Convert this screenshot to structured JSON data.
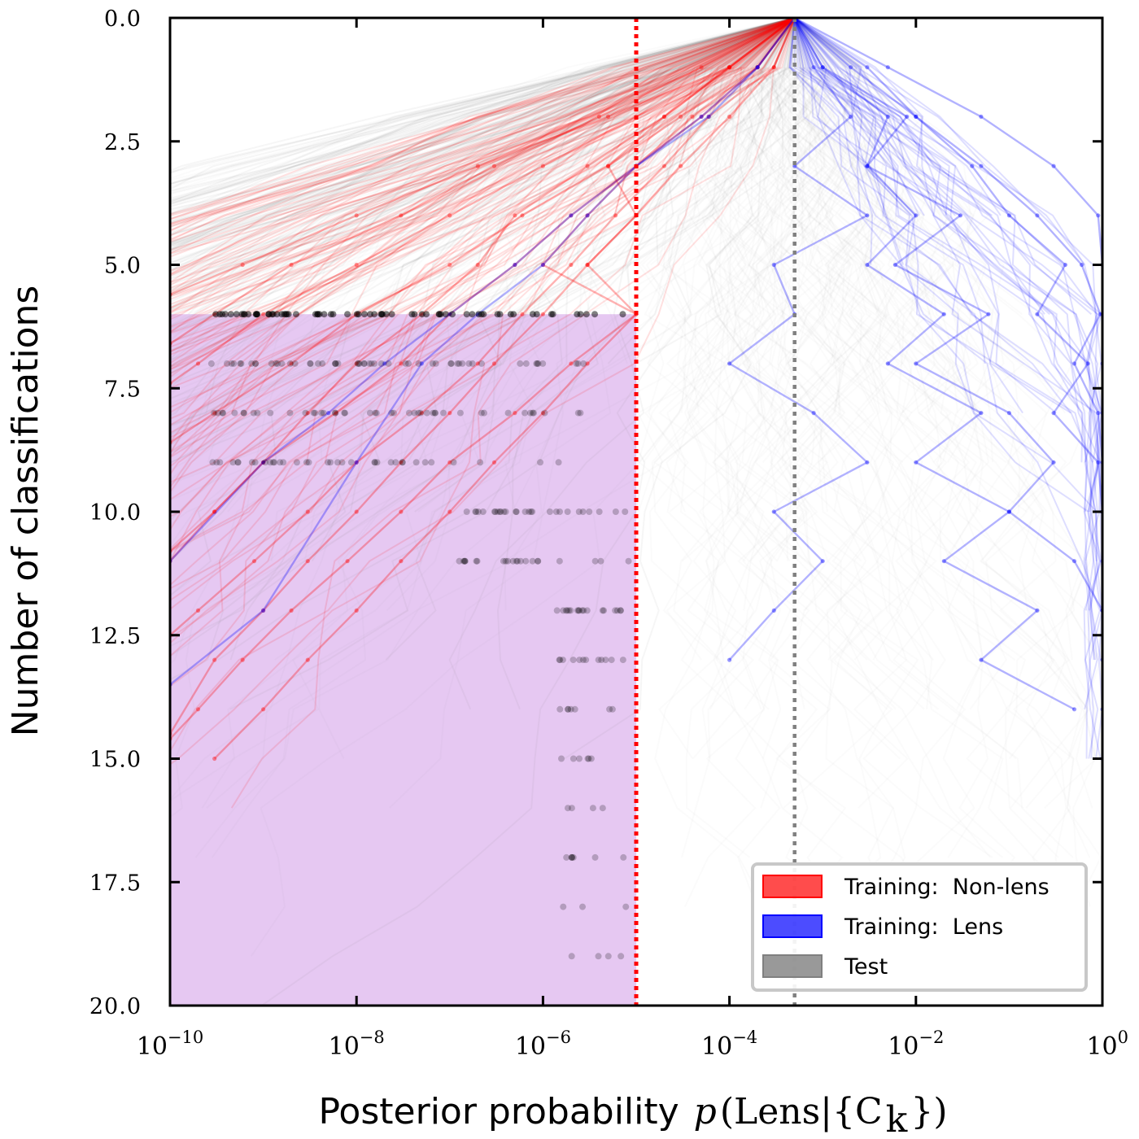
{
  "chart_data": {
    "type": "line",
    "xlabel": "Posterior probability",
    "xlabel_math": {
      "italic": "p",
      "rest": "(Lens|{C",
      "sub": "k",
      "close": "})"
    },
    "ylabel": "Number of classifications",
    "x_scale": "log",
    "xlim": [
      1e-10,
      1
    ],
    "ylim": [
      20,
      0
    ],
    "y_inverted": true,
    "x_ticks": [
      {
        "value": 1e-10,
        "base": "10",
        "exp": "−10"
      },
      {
        "value": 1e-08,
        "base": "10",
        "exp": "−8"
      },
      {
        "value": 1e-06,
        "base": "10",
        "exp": "−6"
      },
      {
        "value": 0.0001,
        "base": "10",
        "exp": "−4"
      },
      {
        "value": 0.01,
        "base": "10",
        "exp": "−2"
      },
      {
        "value": 1,
        "base": "10",
        "exp": "0"
      }
    ],
    "y_ticks": [
      {
        "value": 0,
        "label": "0.0"
      },
      {
        "value": 2.5,
        "label": "2.5"
      },
      {
        "value": 5,
        "label": "5.0"
      },
      {
        "value": 7.5,
        "label": "7.5"
      },
      {
        "value": 10,
        "label": "10.0"
      },
      {
        "value": 12.5,
        "label": "12.5"
      },
      {
        "value": 15,
        "label": "15.0"
      },
      {
        "value": 17.5,
        "label": "17.5"
      },
      {
        "value": 20,
        "label": "20.0"
      }
    ],
    "prior": 0.0005,
    "rejection_threshold": 1e-05,
    "detection_threshold": 1,
    "shaded_region": {
      "x": [
        1e-10,
        1e-05
      ],
      "y": [
        6,
        20
      ],
      "color": "#e6c8f2"
    },
    "legend": {
      "position": "bottom-right",
      "entries": [
        {
          "label": "Training:  Non-lens",
          "color": "#ff0000"
        },
        {
          "label": "Training:  Lens",
          "color": "#0000ff"
        },
        {
          "label": "Test",
          "color": "#808080"
        }
      ]
    },
    "series": [
      {
        "name": "Training:  Non-lens",
        "color": "#ff0000",
        "trajectories": [
          [
            [
              0.0005,
              0
            ],
            [
              0.0001,
              1
            ],
            [
              5e-06,
              2
            ],
            [
              2e-07,
              3
            ],
            [
              1e-08,
              4
            ],
            [
              6e-10,
              5
            ],
            [
              1e-10,
              5.6
            ]
          ],
          [
            [
              0.0005,
              0
            ],
            [
              5e-05,
              1
            ],
            [
              4e-06,
              2
            ],
            [
              3e-07,
              3
            ],
            [
              3e-08,
              4
            ],
            [
              2e-09,
              5
            ],
            [
              3e-10,
              6
            ],
            [
              1e-10,
              6.6
            ]
          ],
          [
            [
              0.0005,
              0
            ],
            [
              0.0001,
              1
            ],
            [
              1e-05,
              2
            ],
            [
              1e-06,
              3
            ],
            [
              1e-07,
              4
            ],
            [
              1e-08,
              5
            ],
            [
              1e-09,
              6
            ],
            [
              2e-10,
              7
            ],
            [
              1e-10,
              7.4
            ]
          ],
          [
            [
              0.0005,
              0
            ],
            [
              0.0002,
              1
            ],
            [
              3e-05,
              2
            ],
            [
              5e-06,
              3
            ],
            [
              6e-07,
              4
            ],
            [
              1e-07,
              5
            ],
            [
              1e-08,
              6
            ],
            [
              2e-09,
              7
            ],
            [
              3e-10,
              8
            ],
            [
              1e-10,
              8.6
            ]
          ],
          [
            [
              0.0005,
              0
            ],
            [
              0.0002,
              1
            ],
            [
              4e-05,
              2
            ],
            [
              1e-05,
              3
            ],
            [
              2e-06,
              4
            ],
            [
              5e-07,
              5
            ],
            [
              1e-07,
              6
            ],
            [
              3e-08,
              7
            ],
            [
              6e-09,
              8
            ],
            [
              1e-09,
              9
            ],
            [
              3e-10,
              10
            ],
            [
              1e-10,
              10.8
            ]
          ],
          [
            [
              0.0005,
              0
            ],
            [
              0.0003,
              1
            ],
            [
              6e-05,
              2
            ],
            [
              2e-05,
              3
            ],
            [
              6e-06,
              4
            ],
            [
              2e-06,
              5
            ],
            [
              6e-07,
              6
            ],
            [
              2e-07,
              7
            ],
            [
              5e-08,
              8
            ],
            [
              1e-08,
              9
            ],
            [
              3e-09,
              10
            ],
            [
              8e-10,
              11
            ],
            [
              2e-10,
              12
            ],
            [
              1e-10,
              12.5
            ]
          ],
          [
            [
              0.0005,
              0
            ],
            [
              0.0003,
              1
            ],
            [
              0.0001,
              2
            ],
            [
              3e-05,
              3
            ],
            [
              1e-05,
              4
            ],
            [
              3e-06,
              5
            ],
            [
              1e-06,
              6
            ],
            [
              3e-07,
              7
            ],
            [
              1e-07,
              8
            ],
            [
              3e-08,
              9
            ],
            [
              1e-08,
              10
            ],
            [
              3e-09,
              11
            ],
            [
              1e-09,
              12
            ],
            [
              3e-10,
              13
            ],
            [
              1e-10,
              14.5
            ]
          ],
          [
            [
              0.0005,
              0
            ],
            [
              0.0001,
              1
            ],
            [
              2e-05,
              2
            ],
            [
              3e-06,
              3
            ],
            [
              5e-07,
              4
            ],
            [
              2e-07,
              5
            ],
            [
              5e-08,
              6
            ],
            [
              1e-08,
              7
            ],
            [
              3e-09,
              8
            ],
            [
              1e-09,
              9
            ],
            [
              3e-10,
              10
            ],
            [
              1e-10,
              11
            ]
          ],
          [
            [
              0.0005,
              0
            ],
            [
              0.0002,
              1
            ],
            [
              5e-05,
              2
            ],
            [
              1e-05,
              3
            ],
            [
              3e-06,
              4
            ],
            [
              1e-06,
              5
            ],
            [
              1e-05,
              6
            ],
            [
              3e-06,
              7
            ],
            [
              1e-06,
              8
            ],
            [
              3e-07,
              9
            ],
            [
              1e-07,
              10
            ],
            [
              3e-08,
              11
            ],
            [
              1e-08,
              12
            ],
            [
              3e-09,
              13
            ],
            [
              1e-09,
              14
            ],
            [
              3e-10,
              15
            ]
          ],
          [
            [
              0.0005,
              0
            ],
            [
              0.0001,
              1
            ],
            [
              2e-05,
              2
            ],
            [
              5e-06,
              3
            ],
            [
              1e-05,
              4
            ],
            [
              3e-06,
              5
            ],
            [
              1e-05,
              6
            ],
            [
              2e-06,
              7
            ],
            [
              5e-07,
              8
            ],
            [
              1e-07,
              9
            ],
            [
              3e-08,
              10
            ],
            [
              8e-09,
              11
            ],
            [
              2e-09,
              12
            ],
            [
              6e-10,
              13
            ],
            [
              2e-10,
              14
            ],
            [
              1e-10,
              14.6
            ]
          ]
        ]
      },
      {
        "name": "Training:  Lens",
        "color": "#0000ff",
        "trajectories": [
          [
            [
              0.0005,
              0
            ],
            [
              0.005,
              1
            ],
            [
              0.05,
              2
            ],
            [
              0.3,
              3
            ],
            [
              0.9,
              4
            ],
            [
              1,
              5
            ],
            [
              1,
              6
            ],
            [
              1,
              7
            ],
            [
              1,
              8
            ]
          ],
          [
            [
              0.0005,
              0
            ],
            [
              0.002,
              1
            ],
            [
              0.01,
              2
            ],
            [
              0.05,
              3
            ],
            [
              0.2,
              4
            ],
            [
              0.6,
              5
            ],
            [
              0.95,
              6
            ],
            [
              0.5,
              7
            ],
            [
              0.9,
              8
            ],
            [
              1,
              9
            ],
            [
              1,
              10
            ]
          ],
          [
            [
              0.0005,
              0
            ],
            [
              0.001,
              1
            ],
            [
              0.005,
              2
            ],
            [
              0.003,
              3
            ],
            [
              0.01,
              4
            ],
            [
              0.003,
              5
            ],
            [
              0.02,
              6
            ],
            [
              0.005,
              7
            ],
            [
              0.05,
              8
            ],
            [
              0.01,
              9
            ],
            [
              0.1,
              10
            ],
            [
              0.02,
              11
            ],
            [
              0.2,
              12
            ],
            [
              0.05,
              13
            ],
            [
              0.5,
              14
            ]
          ],
          [
            [
              0.0005,
              0
            ],
            [
              0.0008,
              1
            ],
            [
              0.002,
              2
            ],
            [
              0.0005,
              3
            ],
            [
              0.003,
              4
            ],
            [
              0.0003,
              5
            ],
            [
              0.0005,
              6
            ],
            [
              0.0001,
              7
            ],
            [
              0.0008,
              8
            ],
            [
              0.003,
              9
            ],
            [
              0.0003,
              10
            ],
            [
              0.001,
              11
            ],
            [
              0.0003,
              12
            ],
            [
              0.0001,
              13
            ]
          ],
          [
            [
              0.0005,
              0
            ],
            [
              0.001,
              1
            ],
            [
              0.008,
              2
            ],
            [
              0.003,
              3
            ],
            [
              0.03,
              4
            ],
            [
              0.006,
              5
            ],
            [
              0.06,
              6
            ],
            [
              0.01,
              7
            ],
            [
              0.1,
              8
            ],
            [
              0.3,
              9
            ],
            [
              0.1,
              10
            ],
            [
              0.5,
              11
            ],
            [
              1,
              12
            ]
          ],
          [
            [
              0.0005,
              0
            ],
            [
              0.003,
              1
            ],
            [
              0.01,
              2
            ],
            [
              0.04,
              3
            ],
            [
              0.1,
              4
            ],
            [
              0.4,
              5
            ],
            [
              0.2,
              6
            ],
            [
              0.7,
              7
            ],
            [
              0.3,
              8
            ],
            [
              0.9,
              9
            ],
            [
              1,
              10
            ],
            [
              1,
              11
            ],
            [
              1,
              12
            ],
            [
              1,
              13
            ],
            [
              1,
              14
            ],
            [
              1,
              15
            ]
          ],
          [
            [
              0.0005,
              0
            ],
            [
              0.0002,
              1
            ],
            [
              5e-05,
              2
            ],
            [
              1e-05,
              3
            ],
            [
              2e-06,
              4
            ],
            [
              5e-07,
              5
            ],
            [
              1e-07,
              6
            ],
            [
              2e-08,
              7
            ],
            [
              5e-09,
              8
            ],
            [
              1e-09,
              9
            ],
            [
              1e-10,
              11
            ]
          ],
          [
            [
              0.0005,
              0
            ],
            [
              0.0002,
              1
            ],
            [
              6e-05,
              2
            ],
            [
              1e-05,
              3
            ],
            [
              3e-06,
              4
            ],
            [
              1e-06,
              5
            ],
            [
              2e-07,
              6
            ],
            [
              5e-08,
              7
            ],
            [
              1e-08,
              9
            ],
            [
              1e-09,
              12
            ],
            [
              1e-10,
              13.5
            ]
          ]
        ]
      }
    ]
  }
}
